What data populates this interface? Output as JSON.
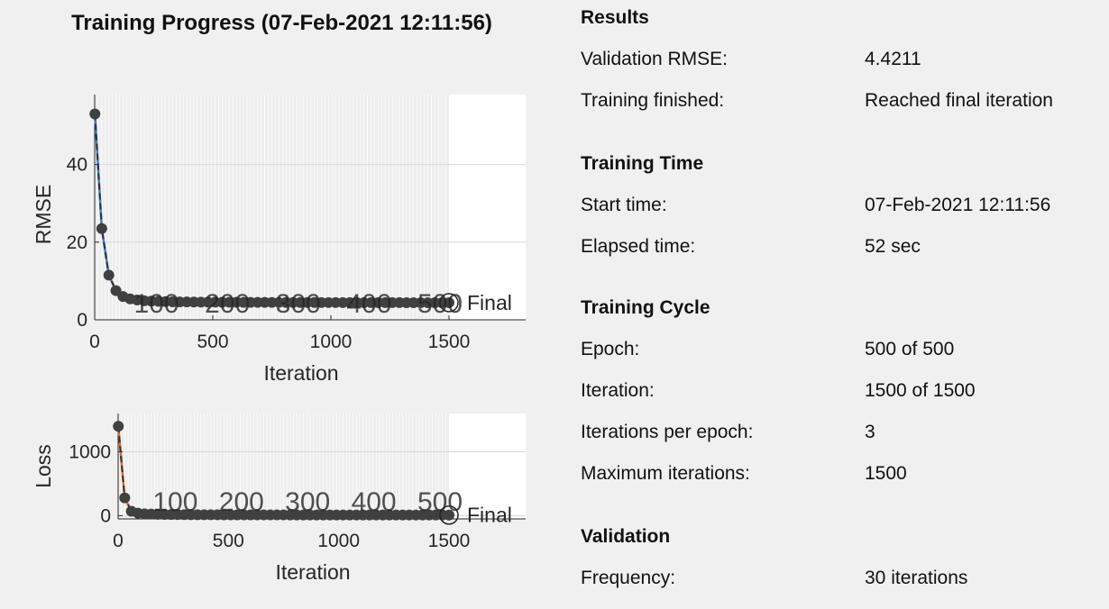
{
  "title": "Training Progress (07-Feb-2021 12:11:56)",
  "colors": {
    "background": "#f0f0f0",
    "rmse_line": "#3a7fd0",
    "loss_line": "#e06a2c",
    "markers": "#404040"
  },
  "results": {
    "heading": "Results",
    "rows": [
      {
        "label": "Validation RMSE:",
        "value": "4.4211"
      },
      {
        "label": "Training finished:",
        "value": "Reached final iteration"
      }
    ]
  },
  "training_time": {
    "heading": "Training Time",
    "rows": [
      {
        "label": "Start time:",
        "value": "07-Feb-2021 12:11:56"
      },
      {
        "label": "Elapsed time:",
        "value": "52 sec"
      }
    ]
  },
  "training_cycle": {
    "heading": "Training Cycle",
    "rows": [
      {
        "label": "Epoch:",
        "value": "500 of 500"
      },
      {
        "label": "Iteration:",
        "value": "1500 of 1500"
      },
      {
        "label": "Iterations per epoch:",
        "value": "3"
      },
      {
        "label": "Maximum iterations:",
        "value": "1500"
      }
    ]
  },
  "validation": {
    "heading": "Validation",
    "rows": [
      {
        "label": "Frequency:",
        "value": "30 iterations"
      }
    ]
  },
  "chart_data": [
    {
      "type": "line",
      "xlabel": "Iteration",
      "ylabel": "RMSE",
      "xticks": [
        0,
        500,
        1000,
        1500
      ],
      "yticks": [
        0,
        20,
        40
      ],
      "ylim": [
        0,
        58
      ],
      "epoch_labels": [
        "100",
        "200",
        "300",
        "400",
        "500"
      ],
      "final_label": "Final",
      "final_value": 4.4211,
      "grid": true,
      "series": [
        {
          "x": [
            1,
            30,
            60,
            90,
            120,
            150,
            180,
            210,
            240,
            270,
            300,
            330,
            360,
            390,
            420,
            450,
            480,
            510,
            540,
            570,
            600,
            630,
            660,
            690,
            720,
            750,
            780,
            810,
            840,
            870,
            900,
            930,
            960,
            990,
            1020,
            1050,
            1080,
            1110,
            1140,
            1170,
            1200,
            1230,
            1260,
            1290,
            1320,
            1350,
            1380,
            1410,
            1440,
            1470,
            1500
          ],
          "y": [
            53,
            23.5,
            11.5,
            7.5,
            6,
            5.4,
            5.1,
            4.9,
            4.8,
            4.75,
            4.7,
            4.65,
            4.6,
            4.6,
            4.58,
            4.56,
            4.55,
            4.54,
            4.53,
            4.52,
            4.51,
            4.5,
            4.5,
            4.49,
            4.49,
            4.48,
            4.48,
            4.47,
            4.47,
            4.46,
            4.46,
            4.46,
            4.45,
            4.45,
            4.45,
            4.44,
            4.44,
            4.44,
            4.44,
            4.43,
            4.43,
            4.43,
            4.43,
            4.43,
            4.42,
            4.42,
            4.42,
            4.42,
            4.42,
            4.42,
            4.4211
          ]
        }
      ]
    },
    {
      "type": "line",
      "xlabel": "Iteration",
      "ylabel": "Loss",
      "xticks": [
        0,
        500,
        1000,
        1500
      ],
      "yticks": [
        0,
        1000
      ],
      "ylim": [
        -50,
        1600
      ],
      "epoch_labels": [
        "100",
        "200",
        "300",
        "400",
        "500"
      ],
      "final_label": "Final",
      "grid": true,
      "series": [
        {
          "x": [
            1,
            30,
            60,
            90,
            120,
            150,
            180,
            210,
            240,
            270,
            300,
            330,
            360,
            390,
            420,
            450,
            480,
            510,
            540,
            570,
            600,
            630,
            660,
            690,
            720,
            750,
            780,
            810,
            840,
            870,
            900,
            930,
            960,
            990,
            1020,
            1050,
            1080,
            1110,
            1140,
            1170,
            1200,
            1230,
            1260,
            1290,
            1320,
            1350,
            1380,
            1410,
            1440,
            1470,
            1500
          ],
          "y": [
            1400,
            280,
            70,
            40,
            30,
            25,
            22,
            20,
            19,
            18,
            17,
            16,
            16,
            15,
            15,
            15,
            14,
            14,
            14,
            14,
            13,
            13,
            13,
            13,
            13,
            13,
            12,
            12,
            12,
            12,
            12,
            12,
            12,
            12,
            12,
            11,
            11,
            11,
            11,
            11,
            11,
            11,
            11,
            11,
            11,
            11,
            11,
            11,
            11,
            11,
            10
          ]
        }
      ]
    }
  ]
}
